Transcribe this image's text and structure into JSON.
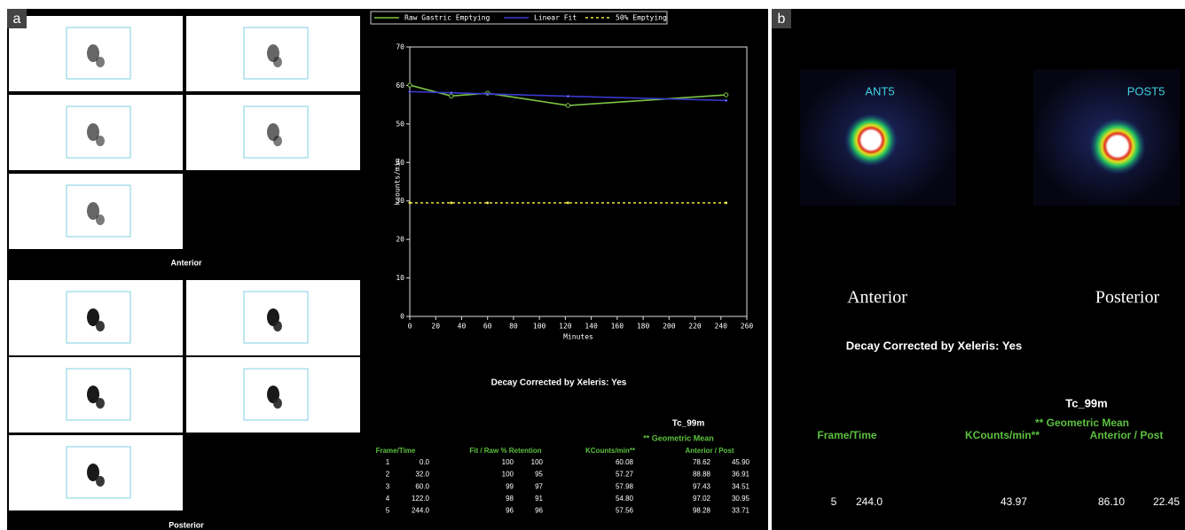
{
  "panel_a": {
    "label": "a",
    "anterior_caption": "Anterior",
    "posterior_caption": "Posterior",
    "decay_note": "Decay Corrected by Xeleris: Yes",
    "isotope": "Tc_99m",
    "geometric_mean": "** Geometric Mean",
    "table_header": [
      "Frame/Time",
      "Fit / Raw % Retention",
      "KCounts/min**",
      "Anterior / Post"
    ],
    "table_rows": [
      [
        "1",
        "0.0",
        "100",
        "100",
        "60.08",
        "78.62",
        "45.90"
      ],
      [
        "2",
        "32.0",
        "100",
        "95",
        "57.27",
        "88.88",
        "36.91"
      ],
      [
        "3",
        "60.0",
        "99",
        "97",
        "57.98",
        "97.43",
        "34.51"
      ],
      [
        "4",
        "122.0",
        "98",
        "91",
        "54.80",
        "97.02",
        "30.95"
      ],
      [
        "5",
        "244.0",
        "96",
        "96",
        "57.56",
        "98.28",
        "33.71"
      ]
    ]
  },
  "chart_data": {
    "type": "line",
    "x_label": "Minutes",
    "y_label": "kcounts/min",
    "xlim": [
      0,
      260
    ],
    "xticks": [
      0,
      20,
      40,
      60,
      80,
      100,
      120,
      140,
      160,
      180,
      200,
      220,
      240,
      260
    ],
    "ylim": [
      0,
      70
    ],
    "yticks": [
      0,
      10,
      20,
      30,
      40,
      50,
      60,
      70
    ],
    "series": [
      {
        "name": "Raw Gastric Emptying",
        "color": "#7cc444",
        "x": [
          0,
          32,
          60,
          122,
          244
        ],
        "values": [
          60.08,
          57.27,
          57.98,
          54.8,
          57.56
        ]
      },
      {
        "name": "Linear Fit",
        "color": "#3a3ad0",
        "x": [
          0,
          32,
          60,
          122,
          244
        ],
        "values": [
          58.4,
          58.1,
          57.8,
          57.2,
          56.1
        ]
      },
      {
        "name": "50% Emptying",
        "color": "#e8e040",
        "dashed": true,
        "x": [
          0,
          32,
          60,
          122,
          244
        ],
        "values": [
          29.5,
          29.5,
          29.5,
          29.5,
          29.5
        ]
      }
    ]
  },
  "panel_b": {
    "label": "b",
    "image_labels": [
      "ANT5",
      "POST5"
    ],
    "anterior_caption": "Anterior",
    "posterior_caption": "Posterior",
    "decay_note": "Decay Corrected by Xeleris: Yes",
    "isotope": "Tc_99m",
    "geometric_mean": "** Geometric Mean",
    "table_header": [
      "Frame/Time",
      "KCounts/min**",
      "Anterior / Post"
    ],
    "table_rows": [
      [
        "5",
        "244.0",
        "43.97",
        "86.10",
        "22.45"
      ]
    ]
  }
}
